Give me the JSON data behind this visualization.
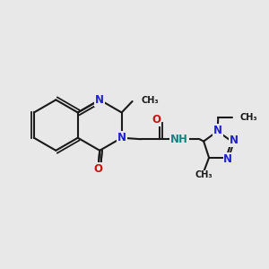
{
  "bg_color": "#e8e8e8",
  "bond_color": "#1a1a1a",
  "N_color": "#2222cc",
  "O_color": "#cc1111",
  "NH_color": "#1a8080",
  "figsize": [
    3.0,
    3.0
  ],
  "dpi": 100,
  "xlim": [
    0,
    10
  ],
  "ylim": [
    0,
    10
  ]
}
